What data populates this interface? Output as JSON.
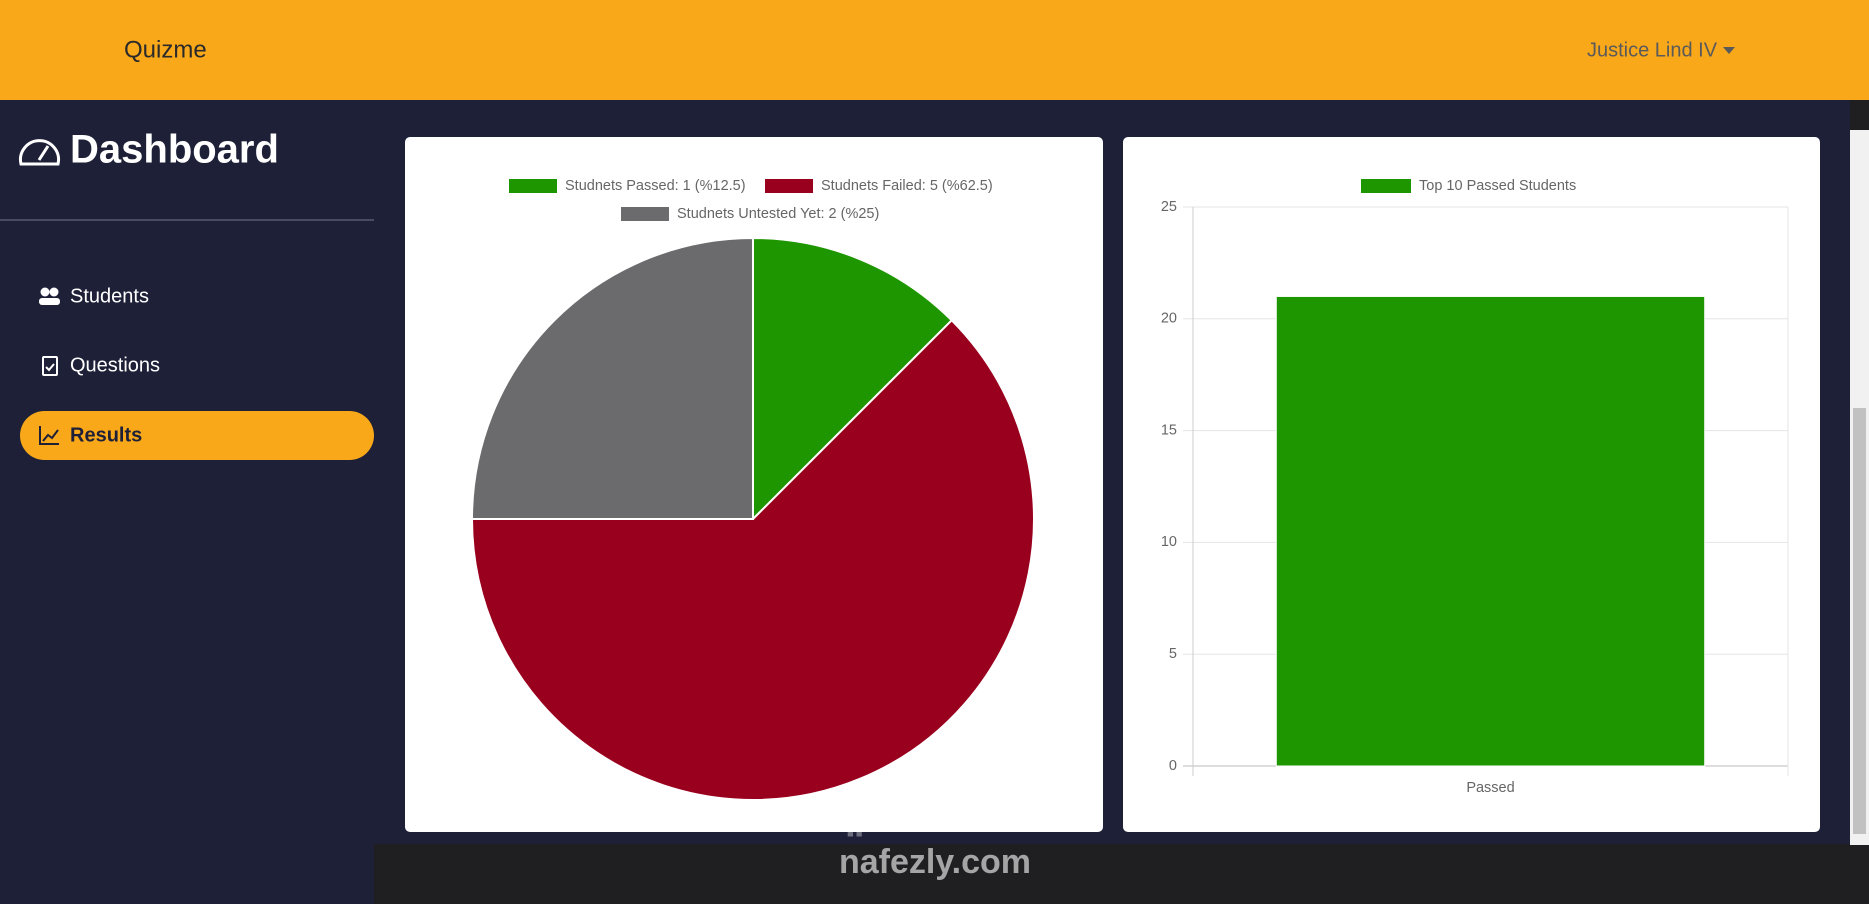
{
  "navbar": {
    "brand": "Quizme",
    "user": "Justice Lind IV"
  },
  "sidebar": {
    "title": "Dashboard",
    "items": [
      "Students",
      "Questions",
      "Results"
    ],
    "active": 2
  },
  "chart_data": [
    {
      "type": "pie",
      "labels": [
        "Studnets Passed: 1 (%12.5)",
        "Studnets Failed: 5 (%62.5)",
        "Studnets Untested Yet: 2 (%25)"
      ],
      "values": [
        1,
        5,
        2
      ],
      "colors": [
        "#1e9600",
        "#99001e",
        "#6b6a6c"
      ]
    },
    {
      "type": "bar",
      "categories": [
        "Passed"
      ],
      "series": [
        {
          "name": "Top 10 Passed Students",
          "color": "#1e9600",
          "values": [
            21
          ]
        }
      ],
      "ylim": [
        0,
        25
      ],
      "yticks": [
        0,
        5,
        10,
        15,
        20,
        25
      ],
      "grid": true
    }
  ],
  "watermark": {
    "arabic": "نفذلي",
    "site": "nafezly.com"
  }
}
